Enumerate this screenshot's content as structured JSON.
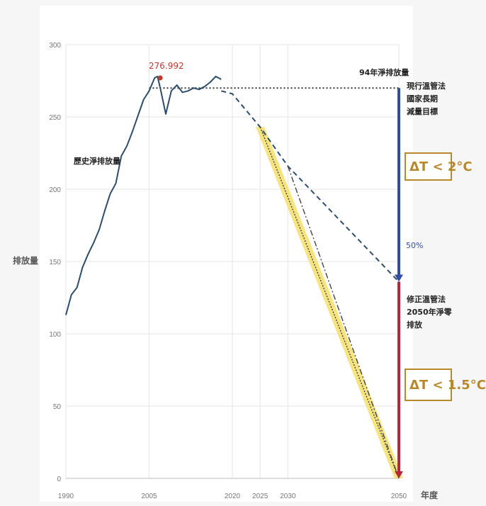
{
  "chart_data": {
    "type": "line",
    "ylabel": "排放量",
    "xlabel": "年度",
    "xlim": [
      1990,
      2050
    ],
    "ylim": [
      0,
      300
    ],
    "y_ticks": [
      0,
      50,
      100,
      150,
      200,
      250,
      300
    ],
    "x_ticks": [
      1990,
      2005,
      2020,
      2025,
      2030,
      2050
    ],
    "grid": true,
    "series": [
      {
        "name": "歷史淨排放量",
        "style": "solid",
        "color": "#2e4d6b",
        "points": [
          [
            1990,
            113
          ],
          [
            1991,
            127
          ],
          [
            1992,
            132
          ],
          [
            1993,
            146
          ],
          [
            1994,
            155
          ],
          [
            1995,
            163
          ],
          [
            1996,
            172
          ],
          [
            1997,
            185
          ],
          [
            1998,
            197
          ],
          [
            1999,
            204
          ],
          [
            2000,
            223
          ],
          [
            2001,
            230
          ],
          [
            2002,
            240
          ],
          [
            2003,
            251
          ],
          [
            2004,
            262
          ],
          [
            2005,
            268
          ],
          [
            2006,
            277
          ],
          [
            2006.5,
            278
          ],
          [
            2007,
            270
          ],
          [
            2008,
            252
          ],
          [
            2009,
            268
          ],
          [
            2010,
            272
          ],
          [
            2011,
            267
          ],
          [
            2012,
            268
          ],
          [
            2013,
            270
          ],
          [
            2014,
            269
          ],
          [
            2015,
            271
          ],
          [
            2016,
            274
          ],
          [
            2017,
            278
          ],
          [
            2018,
            276
          ]
        ]
      },
      {
        "name": "現行溫管法國家長期減量目標",
        "style": "dashed",
        "color": "#2e4d6b",
        "points": [
          [
            2018,
            268
          ],
          [
            2020,
            266
          ],
          [
            2025,
            243
          ],
          [
            2030,
            216
          ],
          [
            2050,
            136
          ]
        ]
      },
      {
        "name": "修正溫管法2050年淨零排放",
        "style": "dotted",
        "color": "#444444",
        "points": [
          [
            2025,
            243
          ],
          [
            2050,
            0
          ]
        ]
      },
      {
        "name": "修正溫管法2050年淨零排放",
        "style": "dashdot",
        "color": "#444444",
        "points": [
          [
            2030,
            216
          ],
          [
            2050,
            0
          ]
        ]
      }
    ],
    "reference_lines": [
      {
        "label": "94年淨排放量",
        "y": 270,
        "x_from": 2005,
        "x_to": 2050,
        "style": "dotted",
        "color": "#333333"
      }
    ],
    "highlight_band": {
      "color": "#f5df6a",
      "from": [
        2025,
        243
      ],
      "to": [
        2050,
        0
      ]
    },
    "peak": {
      "x": 2007,
      "y": 276.992,
      "label": "276.992",
      "color": "#c0392b"
    },
    "arrows": [
      {
        "label": "50%",
        "x": 2050,
        "from_y": 270,
        "to_y": 136,
        "color": "#2f4ea0"
      },
      {
        "x": 2050,
        "from_y": 136,
        "to_y": 0,
        "color": "#b5283b"
      }
    ],
    "annotations": {
      "historical": "歷史淨排放量",
      "reference": "94年淨排放量",
      "current_law": [
        "現行溫管法",
        "國家長期",
        "減量目標"
      ],
      "amended_law": [
        "修正溫管法",
        "2050年淨零",
        "排放"
      ],
      "target_2c": "ΔT < 2°C",
      "target_15c": "ΔT < 1.5°C"
    }
  }
}
